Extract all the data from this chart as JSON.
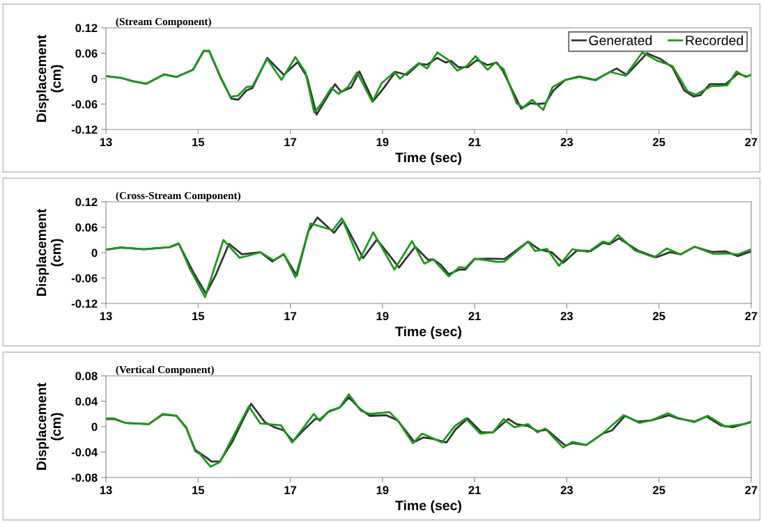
{
  "chart_data": [
    {
      "type": "line",
      "title": "(Stream Component)",
      "xlabel": "Time (sec)",
      "ylabel": "Displacement\n(cm)",
      "xlim": [
        13,
        27
      ],
      "xticks": [
        13,
        15,
        17,
        19,
        21,
        23,
        25,
        27
      ],
      "ylim": [
        -0.12,
        0.12
      ],
      "yticks": [
        {
          "value": -0.12,
          "label": "-0.12"
        },
        {
          "value": -0.06,
          "label": "-0.06"
        },
        0,
        0.06,
        0.12
      ],
      "grid": false,
      "legend": "top right",
      "line_style": "solid",
      "marker": "none",
      "series": [
        {
          "name": "Generated",
          "color": "#333333",
          "x": [
            13.0,
            13.32,
            13.58,
            13.88,
            14.26,
            14.53,
            14.89,
            15.12,
            15.24,
            15.49,
            15.72,
            15.87,
            16.05,
            16.18,
            16.5,
            16.86,
            17.16,
            17.36,
            17.57,
            17.72,
            17.97,
            18.1,
            18.32,
            18.5,
            18.8,
            19.03,
            19.28,
            19.53,
            19.79,
            19.97,
            20.19,
            20.37,
            20.49,
            20.65,
            20.85,
            21.05,
            21.28,
            21.48,
            21.61,
            22.01,
            22.21,
            22.36,
            22.54,
            22.71,
            22.97,
            23.27,
            23.62,
            24.08,
            24.3,
            24.74,
            25.04,
            25.29,
            25.55,
            25.75,
            25.9,
            26.1,
            26.45,
            26.71,
            26.91,
            27.0
          ],
          "values": [
            0.006,
            0.002,
            -0.006,
            -0.012,
            0.01,
            0.004,
            0.021,
            0.065,
            0.065,
            0.002,
            -0.047,
            -0.05,
            -0.028,
            -0.022,
            0.049,
            0.009,
            0.039,
            0.005,
            -0.085,
            -0.058,
            -0.013,
            -0.031,
            -0.021,
            0.017,
            -0.053,
            -0.022,
            0.016,
            0.009,
            0.035,
            0.033,
            0.049,
            0.038,
            0.042,
            0.027,
            0.027,
            0.044,
            0.032,
            0.038,
            0.019,
            -0.071,
            -0.058,
            -0.06,
            -0.058,
            -0.028,
            -0.003,
            0.005,
            -0.003,
            0.024,
            0.009,
            0.06,
            0.046,
            0.027,
            -0.028,
            -0.042,
            -0.039,
            -0.013,
            -0.013,
            0.012,
            0.005,
            0.009
          ]
        },
        {
          "name": "Recorded",
          "color": "#1a9a1a",
          "x": [
            13.0,
            13.32,
            13.58,
            13.88,
            14.26,
            14.53,
            14.89,
            15.12,
            15.24,
            15.49,
            15.7,
            15.87,
            16.05,
            16.18,
            16.5,
            16.81,
            17.11,
            17.33,
            17.52,
            17.67,
            17.89,
            18.05,
            18.25,
            18.45,
            18.78,
            18.98,
            19.26,
            19.38,
            19.79,
            19.97,
            20.19,
            20.42,
            20.62,
            20.83,
            21.02,
            21.28,
            21.45,
            21.63,
            21.91,
            22.05,
            22.25,
            22.49,
            22.69,
            22.97,
            23.27,
            23.62,
            23.93,
            24.27,
            24.64,
            24.95,
            25.29,
            25.62,
            25.8,
            26.13,
            26.48,
            26.68,
            26.88,
            27.0
          ],
          "values": [
            0.006,
            0.002,
            -0.006,
            -0.012,
            0.01,
            0.004,
            0.021,
            0.066,
            0.066,
            0.004,
            -0.043,
            -0.04,
            -0.02,
            -0.018,
            0.047,
            -0.003,
            0.051,
            0.015,
            -0.08,
            -0.06,
            -0.022,
            -0.036,
            -0.02,
            0.015,
            -0.055,
            -0.011,
            0.016,
            0.0,
            0.037,
            0.024,
            0.062,
            0.045,
            0.019,
            0.03,
            0.053,
            0.021,
            0.038,
            0.022,
            -0.058,
            -0.068,
            -0.05,
            -0.074,
            -0.02,
            -0.003,
            0.004,
            -0.004,
            0.016,
            0.007,
            0.062,
            0.043,
            0.03,
            -0.03,
            -0.038,
            -0.018,
            -0.016,
            0.017,
            0.004,
            0.009
          ]
        }
      ]
    },
    {
      "type": "line",
      "title": "(Cross-Stream Component)",
      "xlabel": "Time (sec)",
      "ylabel": "Displacement\n(cm)",
      "xlim": [
        13,
        27
      ],
      "xticks": [
        13,
        15,
        17,
        19,
        21,
        23,
        25,
        27
      ],
      "ylim": [
        -0.12,
        0.12
      ],
      "yticks": [
        {
          "value": -0.12,
          "label": "-0.12"
        },
        {
          "value": -0.06,
          "label": "-0.06"
        },
        0,
        0.06,
        0.12
      ],
      "grid": false,
      "line_style": "solid",
      "marker": "none",
      "series": [
        {
          "color": "#333333",
          "x": [
            13.0,
            13.32,
            13.83,
            14.38,
            14.58,
            14.89,
            15.17,
            15.39,
            15.67,
            15.95,
            16.35,
            16.61,
            16.86,
            17.14,
            17.39,
            17.59,
            17.95,
            18.15,
            18.58,
            18.88,
            19.36,
            19.71,
            19.99,
            20.1,
            20.27,
            20.44,
            20.67,
            20.8,
            21.0,
            21.3,
            21.65,
            22.16,
            22.41,
            22.67,
            22.92,
            23.22,
            23.52,
            23.78,
            23.93,
            24.13,
            24.54,
            24.94,
            25.24,
            25.47,
            25.77,
            26.14,
            26.44,
            26.71,
            27.0
          ],
          "values": [
            0.007,
            0.012,
            0.008,
            0.013,
            0.021,
            -0.045,
            -0.097,
            -0.051,
            0.021,
            -0.004,
            0.001,
            -0.021,
            -0.004,
            -0.054,
            0.05,
            0.083,
            0.047,
            0.075,
            -0.013,
            0.031,
            -0.035,
            0.014,
            -0.017,
            -0.016,
            -0.029,
            -0.051,
            -0.04,
            -0.04,
            -0.015,
            -0.014,
            -0.015,
            0.026,
            0.007,
            0.001,
            -0.024,
            0.005,
            0.004,
            0.023,
            0.02,
            0.034,
            0.005,
            -0.011,
            0.001,
            -0.004,
            0.014,
            0.002,
            0.003,
            -0.008,
            0.003
          ]
        },
        {
          "color": "#1a9a1a",
          "x": [
            13.0,
            13.32,
            13.83,
            14.38,
            14.58,
            14.82,
            15.15,
            15.55,
            15.9,
            16.1,
            16.35,
            16.64,
            16.86,
            17.11,
            17.44,
            17.92,
            18.12,
            18.5,
            18.8,
            19.26,
            19.64,
            19.91,
            20.1,
            20.44,
            20.67,
            20.8,
            21.0,
            21.5,
            21.65,
            22.16,
            22.31,
            22.57,
            22.83,
            23.12,
            23.47,
            23.78,
            23.93,
            24.11,
            24.48,
            24.9,
            25.17,
            25.47,
            25.77,
            26.19,
            26.44,
            26.71,
            27.0
          ],
          "values": [
            0.007,
            0.012,
            0.008,
            0.013,
            0.022,
            -0.038,
            -0.105,
            0.03,
            -0.012,
            -0.007,
            0.001,
            -0.018,
            -0.003,
            -0.058,
            0.069,
            0.053,
            0.081,
            -0.018,
            0.048,
            -0.04,
            0.027,
            -0.026,
            -0.016,
            -0.056,
            -0.034,
            -0.036,
            -0.014,
            -0.022,
            -0.021,
            0.026,
            0.004,
            0.009,
            -0.031,
            0.008,
            0.002,
            0.026,
            0.022,
            0.042,
            0.005,
            -0.011,
            0.01,
            -0.004,
            0.014,
            -0.003,
            -0.002,
            -0.004,
            0.008
          ]
        }
      ]
    },
    {
      "type": "line",
      "title": "(Vertical Component)",
      "xlabel": "Time (sec)",
      "ylabel": "Displacement\n(cm)",
      "xlim": [
        13,
        27
      ],
      "xticks": [
        13,
        15,
        17,
        19,
        21,
        23,
        25,
        27
      ],
      "ylim": [
        -0.08,
        0.08
      ],
      "yticks": [
        {
          "value": -0.08,
          "label": "-0.08"
        },
        {
          "value": -0.04,
          "label": "-0.04"
        },
        0,
        0.04,
        0.08
      ],
      "grid": false,
      "line_style": "solid",
      "marker": "none",
      "series": [
        {
          "color": "#333333",
          "x": [
            13.0,
            13.17,
            13.42,
            13.93,
            14.23,
            14.53,
            14.74,
            14.94,
            15.17,
            15.29,
            15.47,
            15.75,
            15.95,
            16.15,
            16.45,
            16.66,
            16.86,
            17.06,
            17.31,
            17.54,
            17.66,
            17.82,
            18.07,
            18.27,
            18.53,
            18.73,
            19.08,
            19.33,
            19.69,
            19.89,
            20.09,
            20.39,
            20.59,
            20.85,
            21.15,
            21.4,
            21.73,
            21.91,
            22.16,
            22.36,
            22.57,
            22.97,
            23.12,
            23.42,
            23.78,
            23.98,
            24.26,
            24.54,
            24.84,
            25.22,
            25.41,
            25.77,
            26.03,
            26.34,
            26.59,
            26.84,
            27.0
          ],
          "values": [
            0.012,
            0.012,
            0.006,
            0.004,
            0.019,
            0.017,
            -0.001,
            -0.037,
            -0.048,
            -0.055,
            -0.055,
            -0.023,
            0.007,
            0.036,
            0.007,
            -0.001,
            -0.006,
            -0.023,
            -0.004,
            0.012,
            0.012,
            0.023,
            0.03,
            0.046,
            0.027,
            0.017,
            0.018,
            0.01,
            -0.024,
            -0.017,
            -0.019,
            -0.025,
            -0.004,
            0.013,
            -0.009,
            -0.009,
            0.012,
            0.004,
            0.001,
            -0.007,
            -0.005,
            -0.03,
            -0.026,
            -0.029,
            -0.011,
            -0.006,
            0.017,
            0.008,
            0.01,
            0.018,
            0.013,
            0.008,
            0.016,
            0.002,
            -0.001,
            0.004,
            0.007
          ]
        },
        {
          "color": "#1a9a1a",
          "x": [
            13.0,
            13.17,
            13.42,
            13.93,
            14.23,
            14.53,
            14.74,
            14.94,
            15.04,
            15.27,
            15.47,
            15.75,
            16.1,
            16.35,
            16.8,
            17.04,
            17.51,
            17.64,
            17.85,
            18.07,
            18.27,
            18.53,
            18.73,
            19.15,
            19.33,
            19.66,
            19.86,
            20.09,
            20.29,
            20.57,
            20.81,
            21.12,
            21.4,
            21.63,
            21.86,
            22.16,
            22.36,
            22.53,
            22.92,
            23.12,
            23.42,
            23.78,
            24.23,
            24.57,
            24.84,
            25.19,
            25.41,
            25.77,
            26.06,
            26.44,
            26.84,
            27.0
          ],
          "values": [
            0.013,
            0.013,
            0.006,
            0.004,
            0.02,
            0.017,
            -0.002,
            -0.039,
            -0.043,
            -0.063,
            -0.056,
            -0.017,
            0.032,
            0.005,
            0.002,
            -0.025,
            0.02,
            0.009,
            0.025,
            0.03,
            0.051,
            0.025,
            0.02,
            0.023,
            0.01,
            -0.026,
            -0.011,
            -0.018,
            -0.025,
            0.001,
            0.013,
            -0.011,
            -0.009,
            0.012,
            -0.001,
            0.004,
            -0.009,
            -0.003,
            -0.033,
            -0.024,
            -0.029,
            -0.011,
            0.018,
            0.006,
            0.01,
            0.021,
            0.014,
            0.007,
            0.017,
            0.0,
            0.004,
            0.008
          ]
        }
      ]
    }
  ]
}
